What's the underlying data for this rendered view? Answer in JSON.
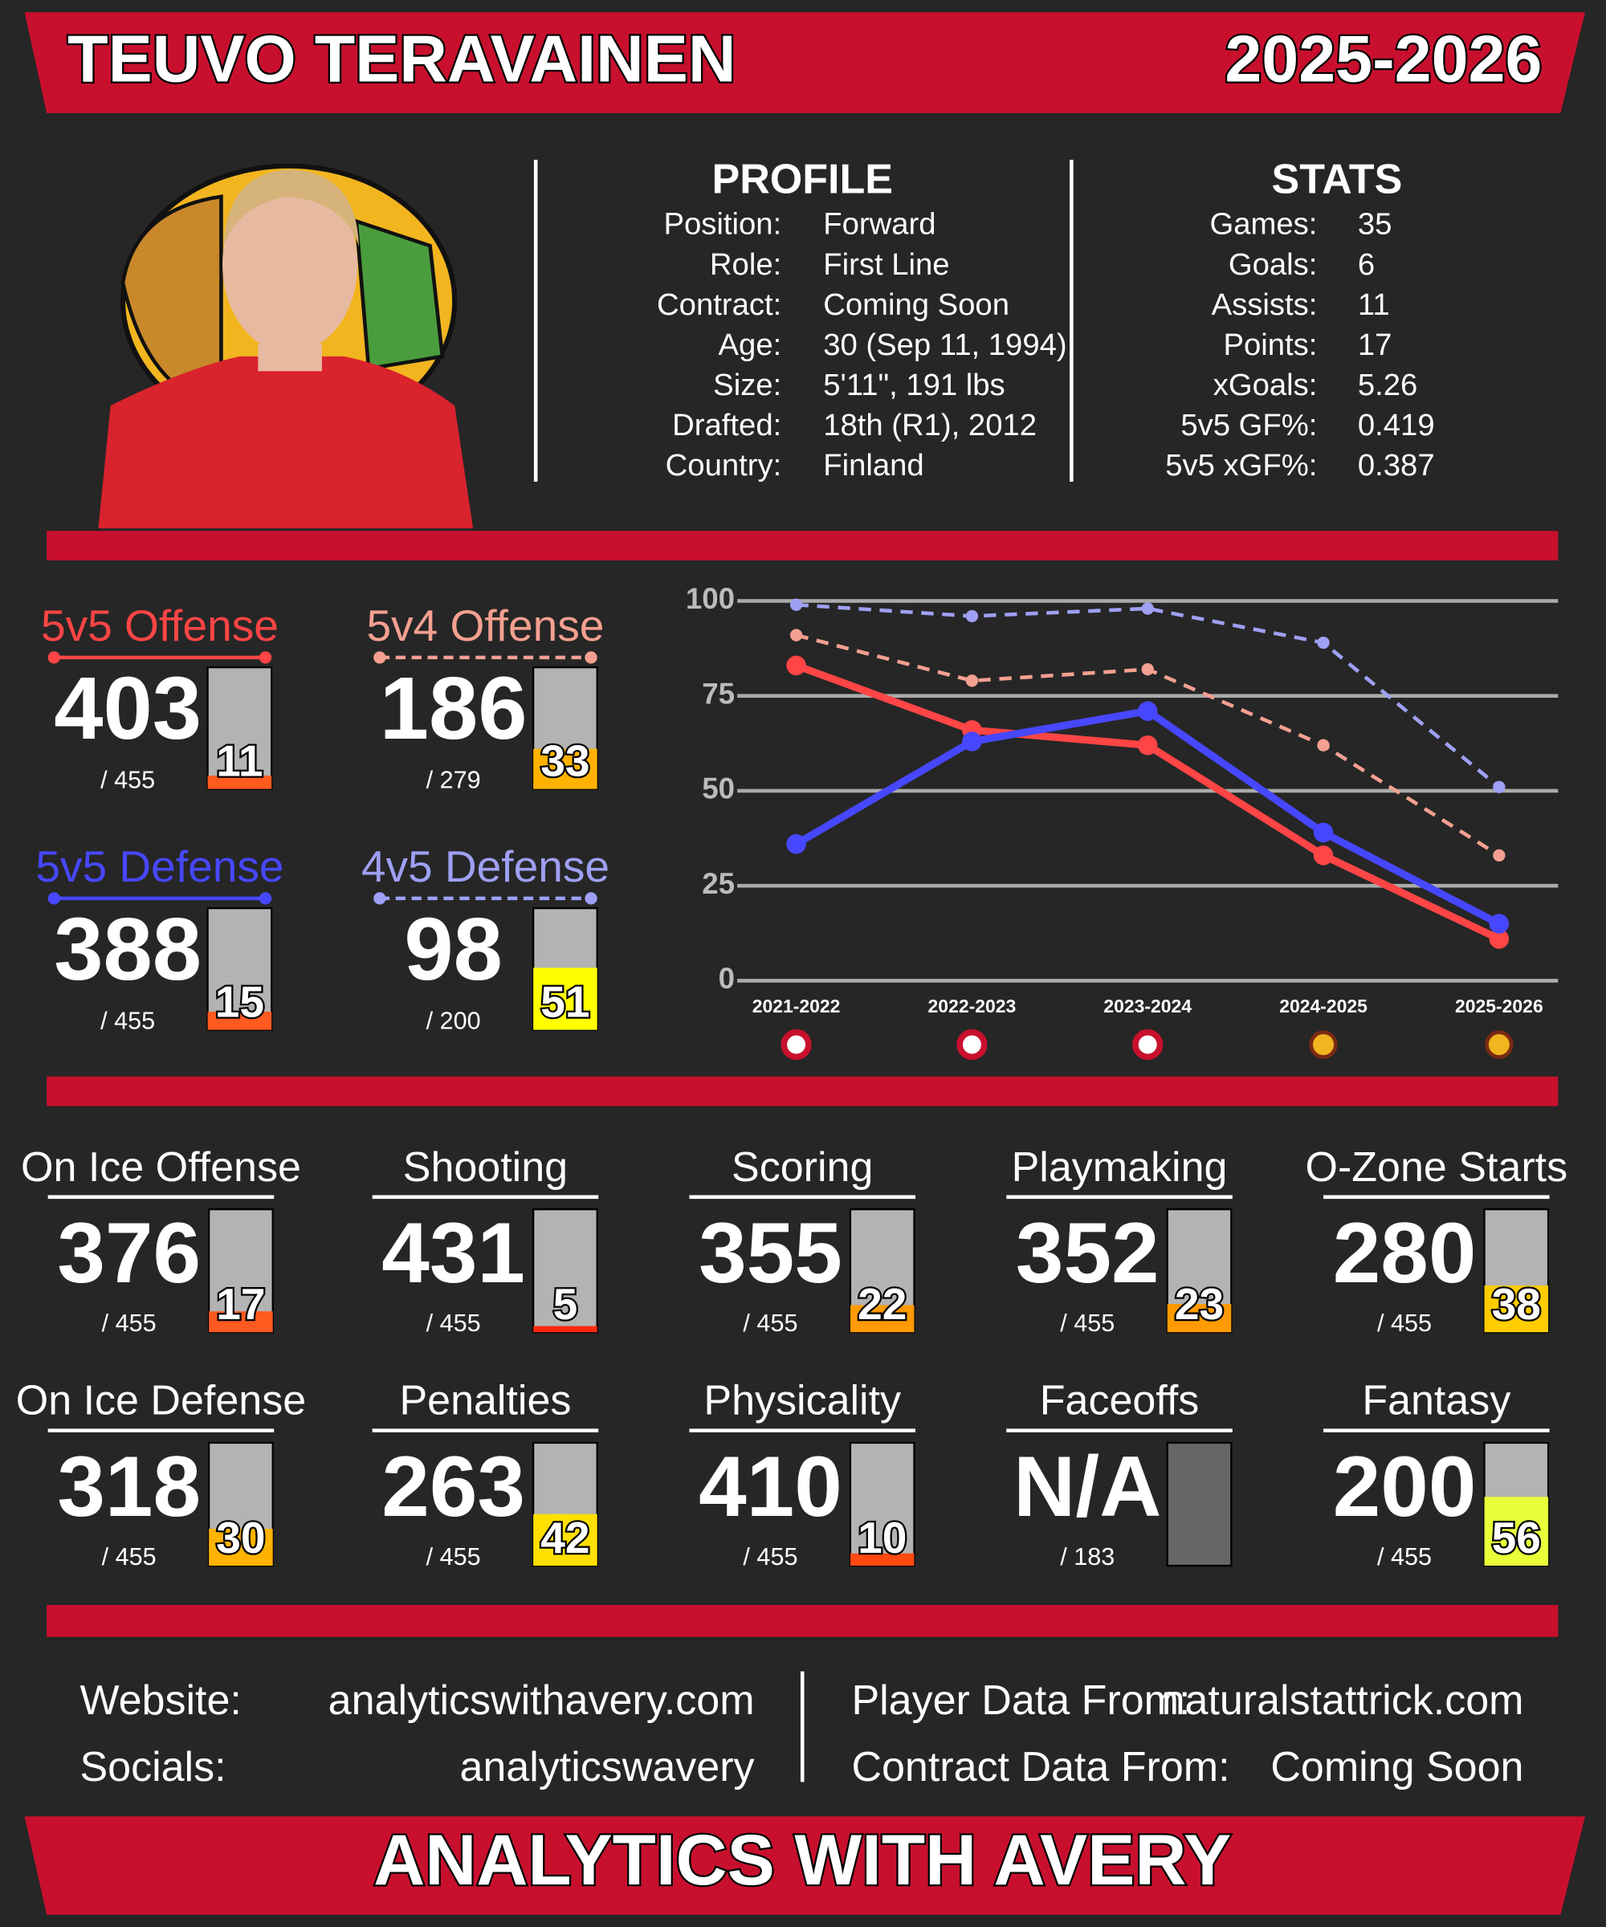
{
  "header": {
    "name": "TEUVO TERAVAINEN",
    "season": "2025-2026"
  },
  "profile": {
    "title": "PROFILE",
    "rows": [
      [
        "Position:",
        "Forward"
      ],
      [
        "Role:",
        "First Line"
      ],
      [
        "Contract:",
        "Coming Soon"
      ],
      [
        "Age:",
        "30 (Sep 11, 1994)"
      ],
      [
        "Size:",
        "5'11\", 191 lbs"
      ],
      [
        "Drafted:",
        "18th (R1), 2012"
      ],
      [
        "Country:",
        "Finland"
      ]
    ]
  },
  "stats": {
    "title": "STATS",
    "rows": [
      [
        "Games:",
        35
      ],
      [
        "Goals:",
        6
      ],
      [
        "Assists:",
        11
      ],
      [
        "Points:",
        17
      ],
      [
        "xGoals:",
        5.26
      ],
      [
        "5v5 GF%:",
        0.419
      ],
      [
        "5v5 xGF%:",
        0.387
      ]
    ]
  },
  "chart_data": {
    "type": "line",
    "categories": [
      "2021-2022",
      "2022-2023",
      "2023-2024",
      "2024-2025",
      "2025-2026"
    ],
    "series": [
      {
        "name": "5v5 Offense",
        "color": "#ff4545",
        "dash": false,
        "values": [
          83,
          66,
          62,
          33,
          11
        ]
      },
      {
        "name": "5v4 Offense",
        "color": "#f4a090",
        "dash": true,
        "values": [
          91,
          79,
          82,
          62,
          33
        ]
      },
      {
        "name": "5v5 Defense",
        "color": "#4747ff",
        "dash": false,
        "values": [
          36,
          63,
          71,
          39,
          15
        ]
      },
      {
        "name": "4v5 Defense",
        "color": "#9ea0f4",
        "dash": true,
        "values": [
          99,
          96,
          98,
          89,
          51
        ]
      }
    ],
    "ylim": [
      0,
      100
    ],
    "yticks": [
      0,
      25,
      50,
      75,
      100
    ],
    "grid": true
  },
  "cards": [
    {
      "rank": 403,
      "total": "/ 455",
      "color": "#ff5a1f"
    },
    {
      "rank": 186,
      "total": "/ 279",
      "color": "#ffb300"
    },
    {
      "rank": 388,
      "total": "/ 455",
      "color": "#ff5a1f"
    },
    {
      "rank": 98,
      "total": "/ 200",
      "color": "#ffff00"
    }
  ],
  "metrics": [
    {
      "label": "On Ice Offense",
      "rank": 376,
      "total": "/ 455",
      "percentile": 17,
      "color": "#ff5a1f"
    },
    {
      "label": "Shooting",
      "rank": 431,
      "total": "/ 455",
      "percentile": 5,
      "color": "#ff2a10"
    },
    {
      "label": "Scoring",
      "rank": 355,
      "total": "/ 455",
      "percentile": 22,
      "color": "#ff9a00"
    },
    {
      "label": "Playmaking",
      "rank": 352,
      "total": "/ 455",
      "percentile": 23,
      "color": "#ff9a00"
    },
    {
      "label": "O-Zone Starts",
      "rank": 280,
      "total": "/ 455",
      "percentile": 38,
      "color": "#ffcc00"
    },
    {
      "label": "On Ice Defense",
      "rank": 318,
      "total": "/ 455",
      "percentile": 30,
      "color": "#ffb300"
    },
    {
      "label": "Penalties",
      "rank": 263,
      "total": "/ 455",
      "percentile": 42,
      "color": "#ffe000"
    },
    {
      "label": "Physicality",
      "rank": 410,
      "total": "/ 455",
      "percentile": 10,
      "color": "#ff4a10"
    },
    {
      "label": "Faceoffs",
      "rank": "N/A",
      "total": "/ 183",
      "percentile": null,
      "color": "#666666"
    },
    {
      "label": "Fantasy",
      "rank": 200,
      "total": "/ 455",
      "percentile": 56,
      "color": "#e8ff3a"
    }
  ],
  "footer": {
    "rows": [
      [
        "Website:",
        "analyticswithavery.com",
        "Player Data From:",
        "naturalstattrick.com"
      ],
      [
        "Socials:",
        "analyticswavery",
        "Contract Data From:",
        "Coming Soon"
      ]
    ],
    "brand": "ANALYTICS WITH AVERY"
  }
}
